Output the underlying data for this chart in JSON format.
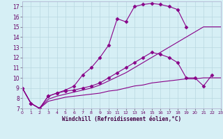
{
  "xlabel": "Windchill (Refroidissement éolien,°C)",
  "xlim": [
    0,
    23
  ],
  "ylim": [
    7,
    17.5
  ],
  "xticks": [
    0,
    1,
    2,
    3,
    4,
    5,
    6,
    7,
    8,
    9,
    10,
    11,
    12,
    13,
    14,
    15,
    16,
    17,
    18,
    19,
    20,
    21,
    22,
    23
  ],
  "yticks": [
    7,
    8,
    9,
    10,
    11,
    12,
    13,
    14,
    15,
    16,
    17
  ],
  "bg_color": "#d6eff5",
  "line_color": "#880088",
  "grid_color": "#b8d8e0",
  "series": [
    {
      "x": [
        0,
        1,
        2,
        3,
        4,
        5,
        6,
        7,
        8,
        9,
        10,
        11,
        12,
        13,
        14,
        15,
        16,
        17,
        18,
        19
      ],
      "y": [
        9.0,
        7.5,
        7.0,
        8.2,
        8.5,
        8.8,
        9.2,
        10.3,
        11.0,
        12.0,
        13.2,
        15.8,
        15.5,
        17.0,
        17.2,
        17.3,
        17.2,
        17.0,
        16.7,
        15.0
      ],
      "marker": "D",
      "markersize": 2.5
    },
    {
      "x": [
        0,
        1,
        2,
        3,
        4,
        5,
        6,
        7,
        8,
        9,
        10,
        11,
        12,
        13,
        14,
        15,
        16,
        17,
        18,
        19,
        20,
        21,
        22
      ],
      "y": [
        9.0,
        7.5,
        7.0,
        8.2,
        8.5,
        8.7,
        8.8,
        9.0,
        9.2,
        9.5,
        10.0,
        10.5,
        11.0,
        11.5,
        12.0,
        12.5,
        12.3,
        12.0,
        11.5,
        10.0,
        10.0,
        9.2,
        10.3
      ],
      "marker": "D",
      "markersize": 2.5
    },
    {
      "x": [
        0,
        1,
        2,
        3,
        4,
        5,
        6,
        7,
        8,
        9,
        10,
        11,
        12,
        13,
        14,
        15,
        16,
        17,
        18,
        19,
        20,
        21,
        22,
        23
      ],
      "y": [
        9.0,
        7.5,
        7.0,
        7.9,
        8.2,
        8.4,
        8.6,
        8.8,
        9.0,
        9.3,
        9.7,
        10.1,
        10.5,
        11.0,
        11.5,
        12.0,
        12.5,
        13.0,
        13.5,
        14.0,
        14.5,
        15.0,
        15.0,
        15.0
      ],
      "marker": null,
      "markersize": 0
    },
    {
      "x": [
        0,
        1,
        2,
        3,
        4,
        5,
        6,
        7,
        8,
        9,
        10,
        11,
        12,
        13,
        14,
        15,
        16,
        17,
        18,
        19,
        20,
        21,
        22,
        23
      ],
      "y": [
        9.0,
        7.5,
        7.0,
        7.7,
        7.9,
        8.1,
        8.2,
        8.3,
        8.4,
        8.5,
        8.7,
        8.8,
        9.0,
        9.2,
        9.3,
        9.5,
        9.6,
        9.7,
        9.8,
        9.9,
        9.9,
        10.0,
        10.0,
        10.0
      ],
      "marker": null,
      "markersize": 0
    }
  ]
}
